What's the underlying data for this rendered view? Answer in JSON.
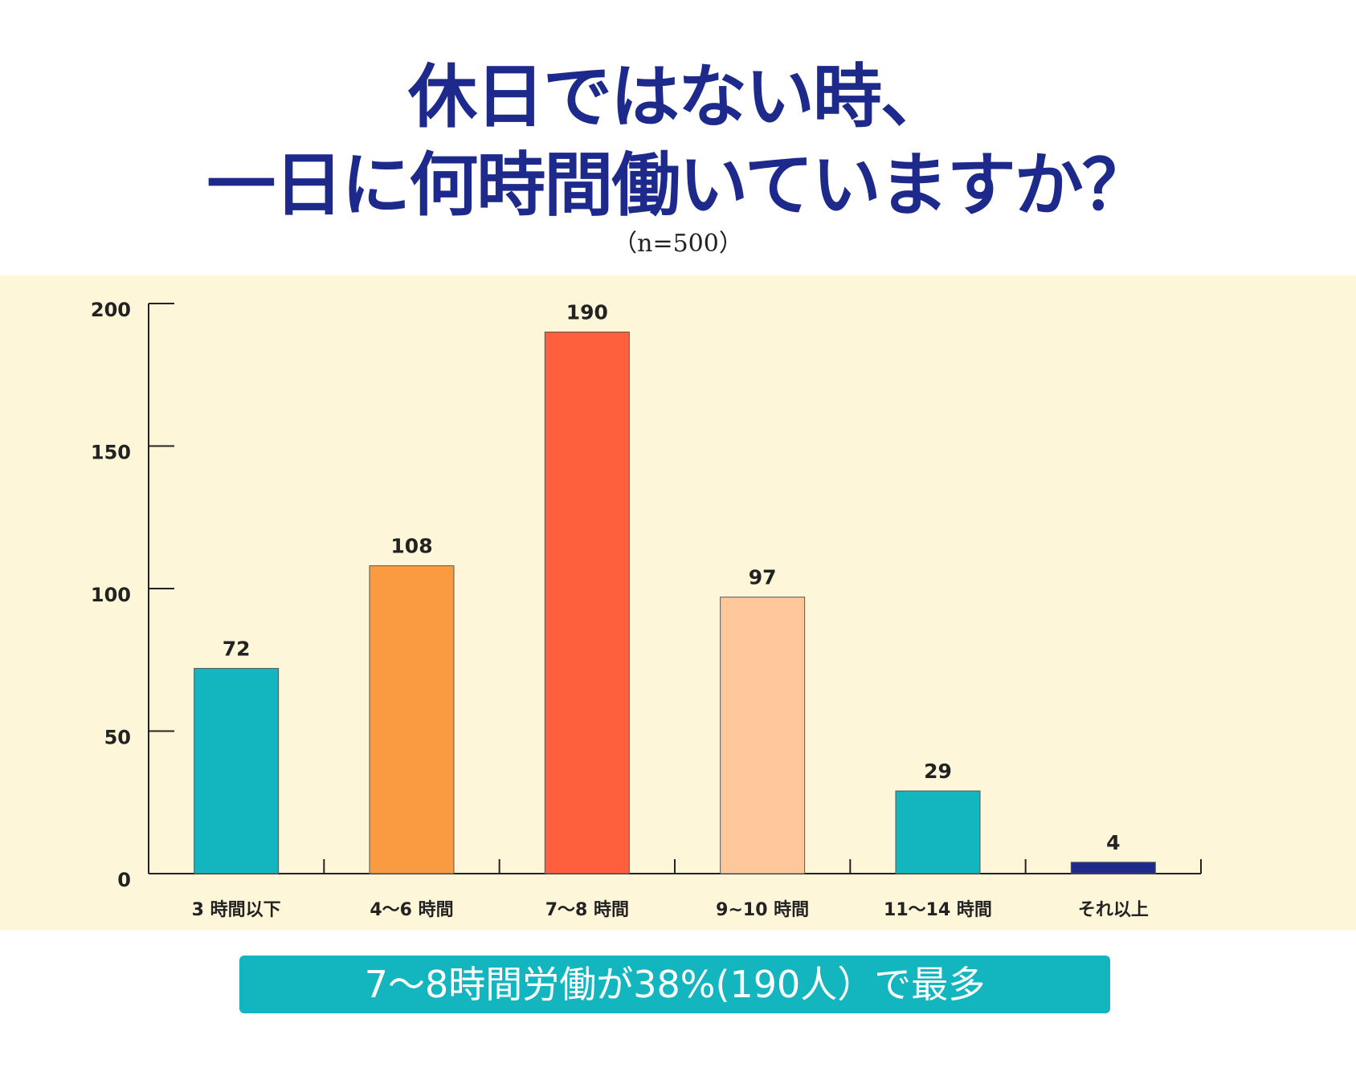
{
  "title_line1": "休日ではない時、",
  "title_line2": "一日に何時間働いていますか？",
  "sample_note": "（n=500）",
  "chart_data": {
    "type": "bar",
    "categories": [
      "3 時間以下",
      "4〜6 時間",
      "7〜8 時間",
      "9~10 時間",
      "11〜14 時間",
      "それ以上"
    ],
    "values": [
      72,
      108,
      190,
      97,
      29,
      4
    ],
    "colors": [
      "#13b5bf",
      "#fb9b41",
      "#fe603e",
      "#fec89a",
      "#13b5bf",
      "#1d2a8c"
    ],
    "ylim": [
      0,
      200
    ],
    "yticks": [
      0,
      50,
      100,
      150,
      200
    ],
    "grid": false,
    "data_labels": true
  },
  "summary_banner": "7〜8時間労働が38%(190人）で最多"
}
